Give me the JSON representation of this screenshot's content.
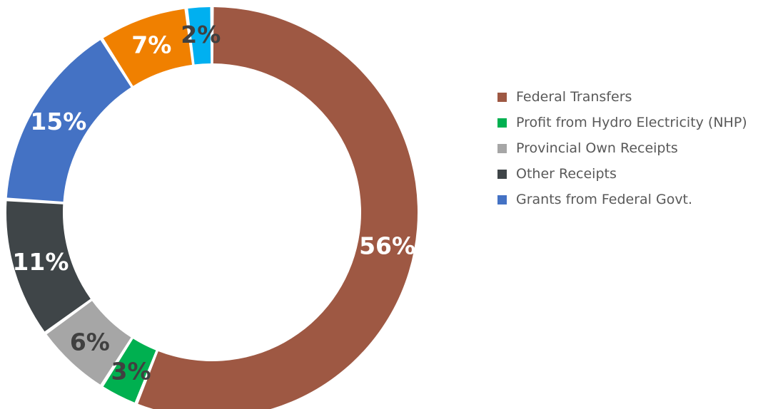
{
  "chart_data": {
    "type": "pie",
    "title": "",
    "slices": [
      {
        "label": "Federal Transfers",
        "value": 56,
        "display": "56%",
        "color": "#9E5843",
        "label_color": "#ffffff"
      },
      {
        "label": "Profit from Hydro Electricity (NHP)",
        "value": 3,
        "display": "3%",
        "color": "#00B050",
        "label_color": "#404040"
      },
      {
        "label": "Provincial Own Receipts",
        "value": 6,
        "display": "6%",
        "color": "#A6A6A6",
        "label_color": "#404040"
      },
      {
        "label": "Other Receipts",
        "value": 11,
        "display": "11%",
        "color": "#3F4548",
        "label_color": "#ffffff"
      },
      {
        "label": "",
        "value": 15,
        "display": "15%",
        "color": "#4472C4",
        "label_color": "#ffffff"
      },
      {
        "label": "",
        "value": 7,
        "display": "7%",
        "color": "#F08000",
        "label_color": "#ffffff"
      },
      {
        "label": "",
        "value": 2,
        "display": "2%",
        "color": "#00B0F0",
        "label_color": "#404040"
      }
    ],
    "legend": {
      "position": "right",
      "entries": [
        {
          "label": "Federal Transfers",
          "color": "#9E5843"
        },
        {
          "label": "Profit from Hydro Electricity (NHP)",
          "color": "#00B050"
        },
        {
          "label": "Provincial Own Receipts",
          "color": "#A6A6A6"
        },
        {
          "label": "Other Receipts",
          "color": "#3F4548"
        },
        {
          "label": "Grants from Federal Govt.",
          "color": "#4472C4"
        }
      ]
    }
  }
}
